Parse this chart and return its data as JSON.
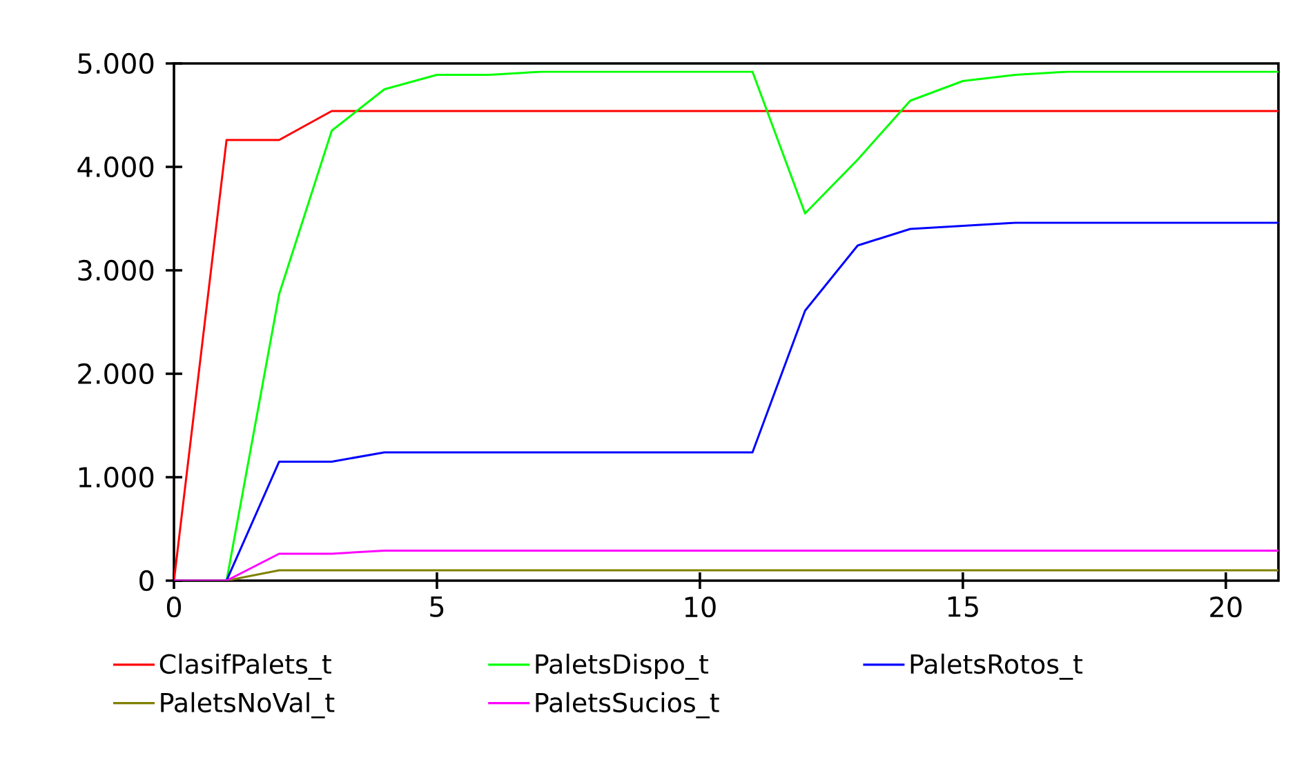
{
  "chart_data": {
    "type": "line",
    "x": [
      0,
      1,
      2,
      3,
      4,
      5,
      6,
      7,
      8,
      9,
      10,
      11,
      12,
      13,
      14,
      15,
      16,
      17,
      18,
      19,
      20,
      21
    ],
    "series": [
      {
        "name": "ClasifPalets_t",
        "color": "#ff0000",
        "values": [
          0,
          4260,
          4260,
          4540,
          4540,
          4540,
          4540,
          4540,
          4540,
          4540,
          4540,
          4540,
          4540,
          4540,
          4540,
          4540,
          4540,
          4540,
          4540,
          4540,
          4540,
          4540
        ]
      },
      {
        "name": "PaletsDispo_t",
        "color": "#00ff00",
        "values": [
          0,
          0,
          2770,
          4350,
          4750,
          4890,
          4890,
          4920,
          4920,
          4920,
          4920,
          4920,
          3550,
          4070,
          4640,
          4830,
          4890,
          4920,
          4920,
          4920,
          4920,
          4920
        ]
      },
      {
        "name": "PaletsRotos_t",
        "color": "#0000ff",
        "values": [
          0,
          0,
          1150,
          1150,
          1240,
          1240,
          1240,
          1240,
          1240,
          1240,
          1240,
          1240,
          2610,
          3240,
          3400,
          3430,
          3460,
          3460,
          3460,
          3460,
          3460,
          3460
        ]
      },
      {
        "name": "PaletsNoVal_t",
        "color": "#808000",
        "values": [
          0,
          0,
          100,
          100,
          100,
          100,
          100,
          100,
          100,
          100,
          100,
          100,
          100,
          100,
          100,
          100,
          100,
          100,
          100,
          100,
          100,
          100
        ]
      },
      {
        "name": "PaletsSucios_t",
        "color": "#ff00ff",
        "values": [
          0,
          0,
          260,
          260,
          290,
          290,
          290,
          290,
          290,
          290,
          290,
          290,
          290,
          290,
          290,
          290,
          290,
          290,
          290,
          290,
          290,
          290
        ]
      }
    ],
    "xlim": [
      0,
      21
    ],
    "xticks": [
      0,
      5,
      10,
      15,
      20
    ],
    "ylim": [
      0,
      5000
    ],
    "yticks": [
      0,
      {
        "value": 1000,
        "label": "1.000"
      },
      {
        "value": 2000,
        "label": "2.000"
      },
      {
        "value": 3000,
        "label": "3.000"
      },
      {
        "value": 4000,
        "label": "4.000"
      },
      {
        "value": 5000,
        "label": "5.000"
      }
    ],
    "grid": false,
    "legend": "bottom",
    "marker": "none",
    "line_style": "solid"
  }
}
